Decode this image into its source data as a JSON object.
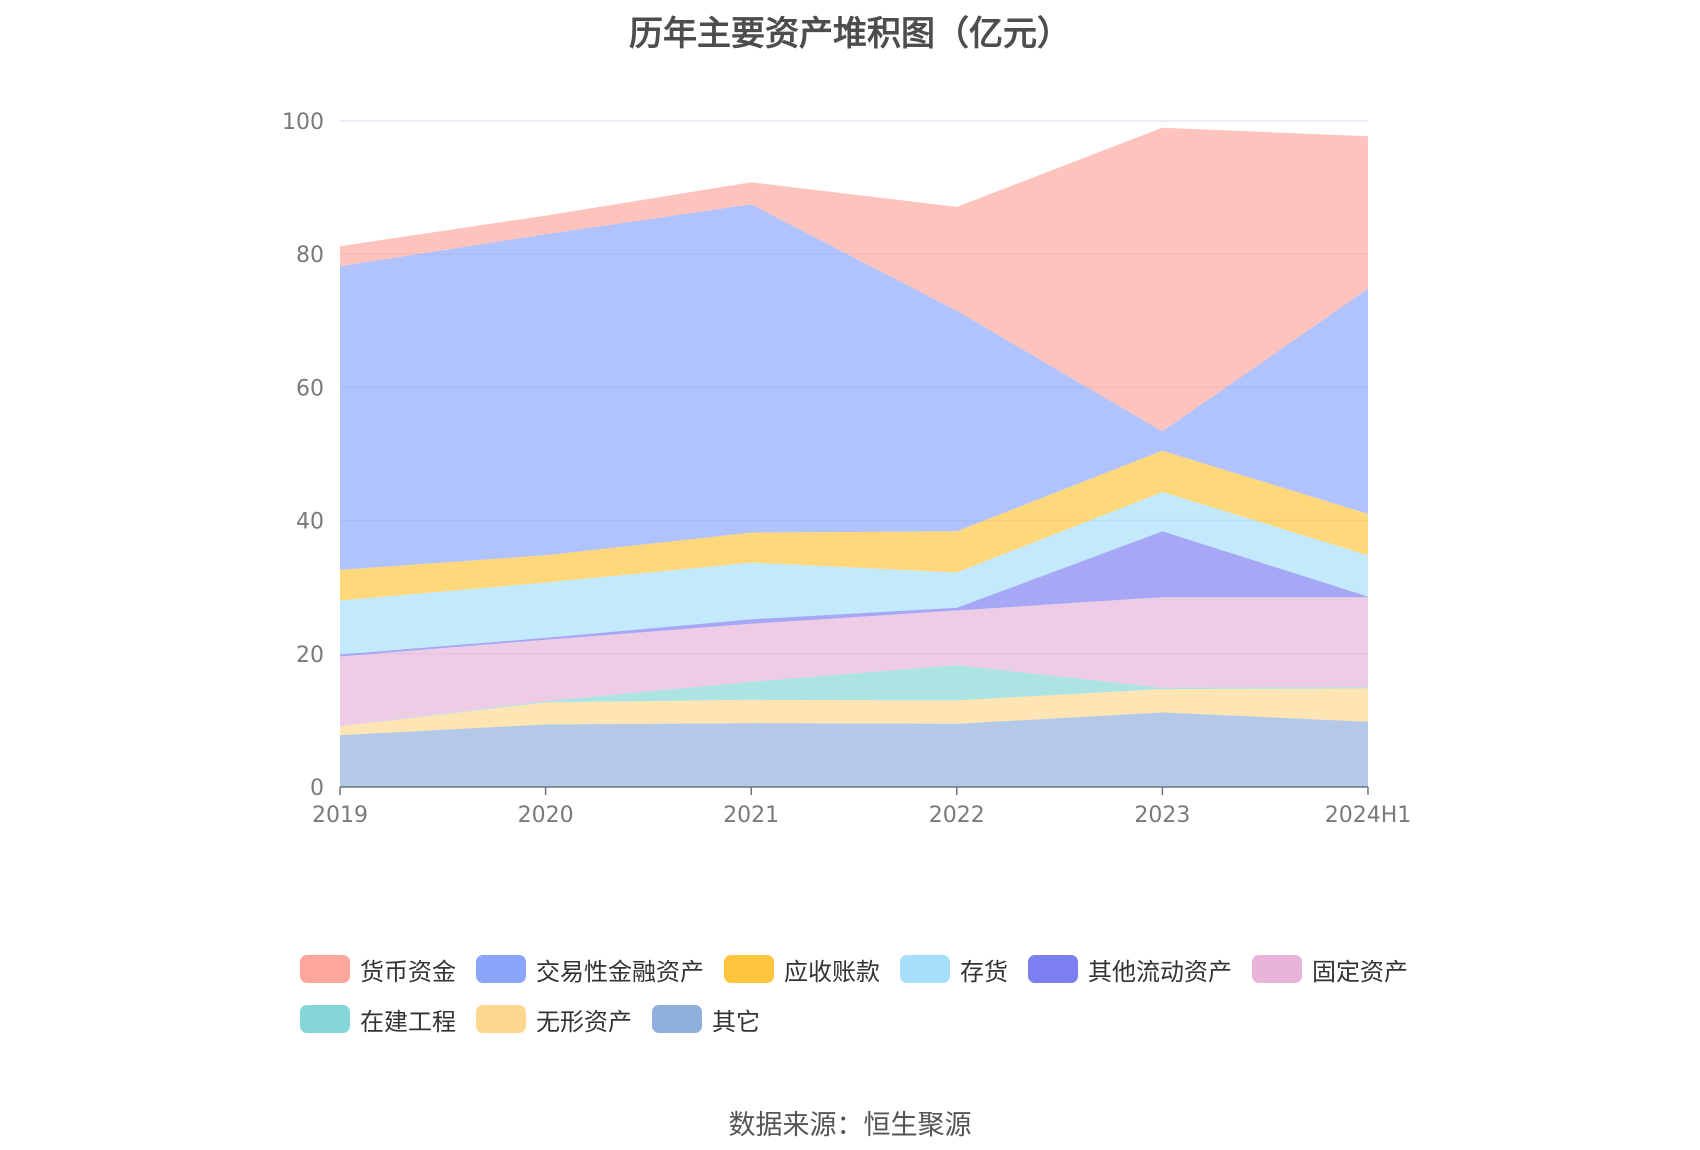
{
  "chart_data": {
    "type": "area",
    "stacked": true,
    "title": "历年主要资产堆积图（亿元）",
    "x": [
      "2019",
      "2020",
      "2021",
      "2022",
      "2023",
      "2024H1"
    ],
    "yticks": [
      "0",
      "20",
      "40",
      "60",
      "80",
      "100"
    ],
    "ylim": [
      0,
      100
    ],
    "grid": "horizontal",
    "legend_position": "bottom",
    "series": [
      {
        "name": "其它",
        "color": "#8fb0dc",
        "values": [
          7.8,
          9.4,
          9.6,
          9.5,
          11.2,
          9.8
        ]
      },
      {
        "name": "无形资产",
        "color": "#ffd88f",
        "values": [
          1.3,
          3.3,
          3.5,
          3.5,
          3.5,
          5.0
        ]
      },
      {
        "name": "在建工程",
        "color": "#85d6d6",
        "values": [
          0.0,
          0.2,
          2.7,
          5.3,
          0.2,
          0.2
        ]
      },
      {
        "name": "固定资产",
        "color": "#e8b4d9",
        "values": [
          10.5,
          9.2,
          8.7,
          8.2,
          13.6,
          13.5
        ]
      },
      {
        "name": "其他流动资产",
        "color": "#7c7ff0",
        "values": [
          0.3,
          0.3,
          0.7,
          0.4,
          9.9,
          0.1
        ]
      },
      {
        "name": "存货",
        "color": "#a7defa",
        "values": [
          8.1,
          8.3,
          8.5,
          5.3,
          5.9,
          6.2
        ]
      },
      {
        "name": "应收账款",
        "color": "#ffc53d",
        "values": [
          4.6,
          4.1,
          4.5,
          6.2,
          6.2,
          6.2
        ]
      },
      {
        "name": "交易性金融资产",
        "color": "#8aa6fa",
        "values": [
          45.6,
          48.2,
          49.3,
          33.1,
          2.9,
          33.8
        ]
      },
      {
        "name": "货币资金",
        "color": "#fca69c",
        "values": [
          3.0,
          2.8,
          3.3,
          15.6,
          45.6,
          22.9
        ]
      }
    ]
  },
  "legend_order": [
    "货币资金",
    "交易性金融资产",
    "应收账款",
    "存货",
    "其他流动资产",
    "固定资产",
    "在建工程",
    "无形资产",
    "其它"
  ],
  "source": "数据来源：恒生聚源"
}
